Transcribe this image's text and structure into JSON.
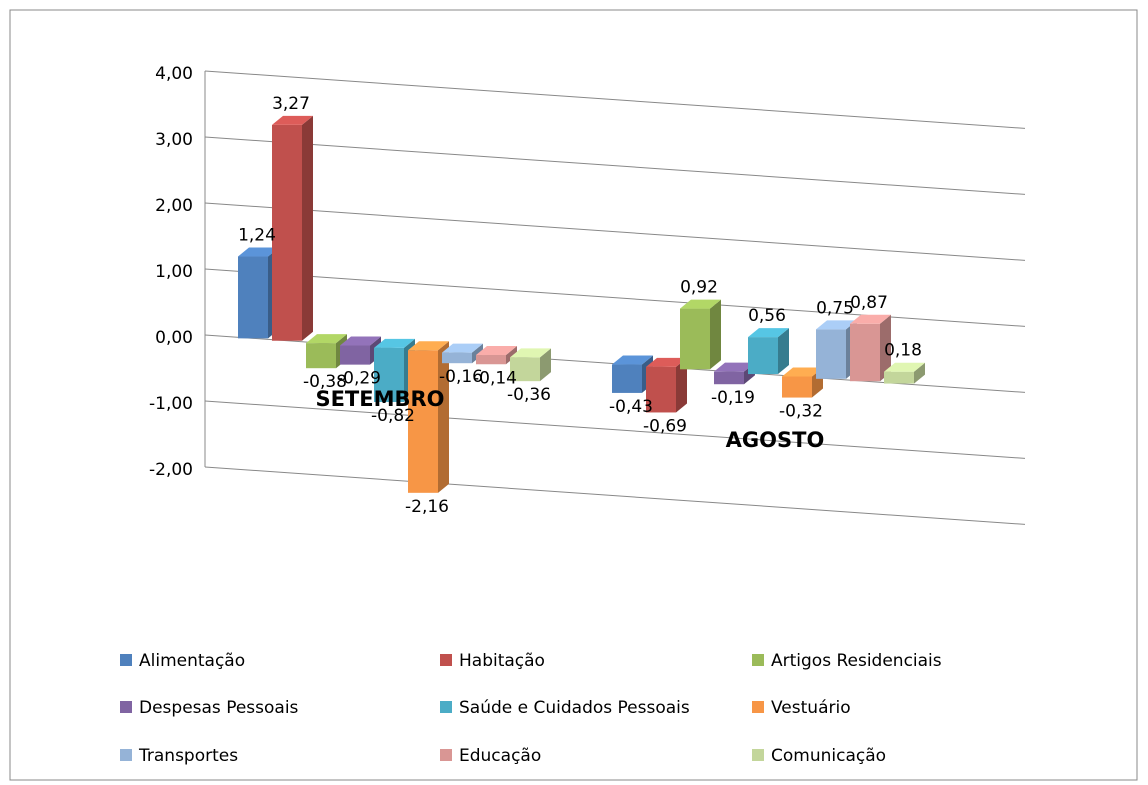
{
  "chart_data": {
    "type": "bar3d",
    "categories": [
      "SETEMBRO",
      "AGOSTO"
    ],
    "ylim": [
      -2,
      4
    ],
    "yticks": [
      {
        "value": -2,
        "label": "-2,00"
      },
      {
        "value": -1,
        "label": "-1,00"
      },
      {
        "value": 0,
        "label": "0,00"
      },
      {
        "value": 1,
        "label": "1,00"
      },
      {
        "value": 2,
        "label": "2,00"
      },
      {
        "value": 3,
        "label": "3,00"
      },
      {
        "value": 4,
        "label": "4,00"
      }
    ],
    "grid": true,
    "legend": "bottom",
    "series": [
      {
        "name": "Alimentação",
        "color": "#4f81bd",
        "values": [
          1.24,
          -0.43
        ],
        "value_labels": [
          "1,24",
          "-0,43"
        ]
      },
      {
        "name": "Habitação",
        "color": "#c0504d",
        "values": [
          3.27,
          -0.69
        ],
        "value_labels": [
          "3,27",
          "-0,69"
        ]
      },
      {
        "name": "Artigos Residenciais",
        "color": "#9bbb59",
        "values": [
          -0.38,
          0.92
        ],
        "value_labels": [
          "-0,38",
          "0,92"
        ]
      },
      {
        "name": "Despesas Pessoais",
        "color": "#8064a2",
        "values": [
          -0.29,
          -0.19
        ],
        "value_labels": [
          "-0,29",
          "-0,19"
        ]
      },
      {
        "name": "Saúde e Cuidados Pessoais",
        "color": "#4bacc6",
        "values": [
          -0.82,
          0.56
        ],
        "value_labels": [
          "-0,82",
          "0,56"
        ]
      },
      {
        "name": "Vestuário",
        "color": "#f79646",
        "values": [
          -2.16,
          -0.32
        ],
        "value_labels": [
          "-2,16",
          "-0,32"
        ]
      },
      {
        "name": "Transportes",
        "color": "#95b3d7",
        "values": [
          -0.16,
          0.75
        ],
        "value_labels": [
          "-0,16",
          "0,75"
        ]
      },
      {
        "name": "Educação",
        "color": "#d99694",
        "values": [
          -0.14,
          0.87
        ],
        "value_labels": [
          "-0,14",
          "0,87"
        ]
      },
      {
        "name": "Comunicação",
        "color": "#c3d69b",
        "values": [
          -0.36,
          0.18
        ],
        "value_labels": [
          "-0,36",
          "0,18"
        ]
      }
    ]
  }
}
